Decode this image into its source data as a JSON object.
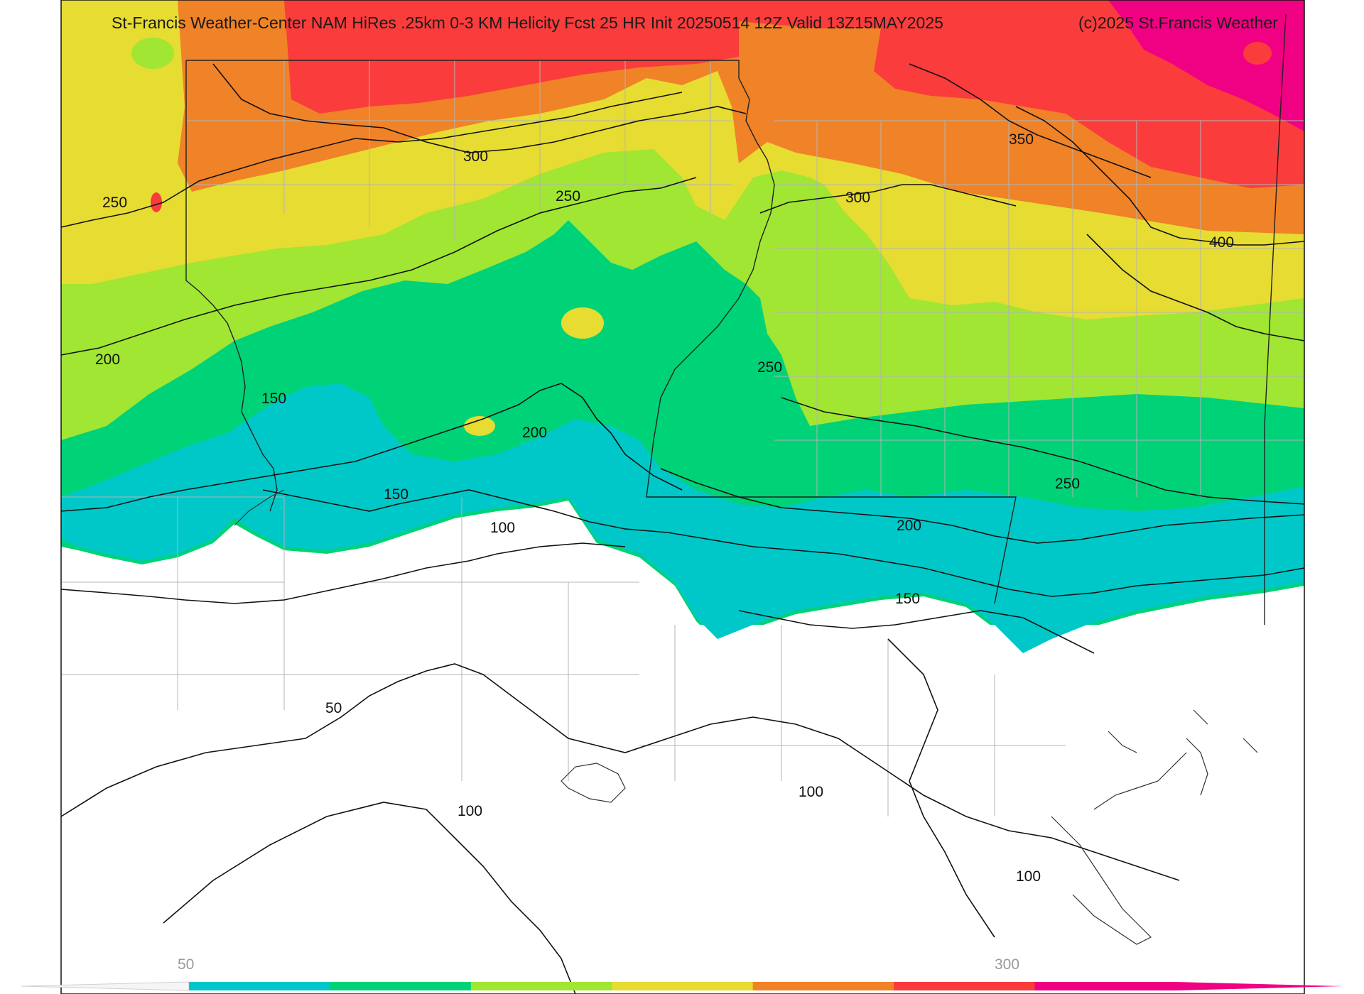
{
  "title": "St-Francis Weather-Center NAM HiRes .25km 0-3 KM Helicity Fcst 25 HR Init 20250514 12Z  Valid 13Z15MAY2025",
  "copyright": "(c)2025 St.Francis Weather",
  "contour_labels": [
    "250",
    "300",
    "250",
    "300",
    "350",
    "400",
    "200",
    "150",
    "250",
    "200",
    "150",
    "100",
    "250",
    "200",
    "150",
    "50",
    "100",
    "100",
    "100"
  ],
  "colorbar": {
    "tick_labels": [
      "50",
      "300"
    ],
    "colors": [
      "#00c8c8",
      "#00d278",
      "#a0e632",
      "#e6dc32",
      "#f08228",
      "#fa3c3c",
      "#f00082"
    ]
  },
  "fill_colors": {
    "pink": "#f00082",
    "red": "#fa3c3c",
    "orange": "#f08228",
    "yellow": "#e6dc32",
    "lime": "#a0e632",
    "green": "#00d278",
    "cyan": "#00c8c8"
  }
}
